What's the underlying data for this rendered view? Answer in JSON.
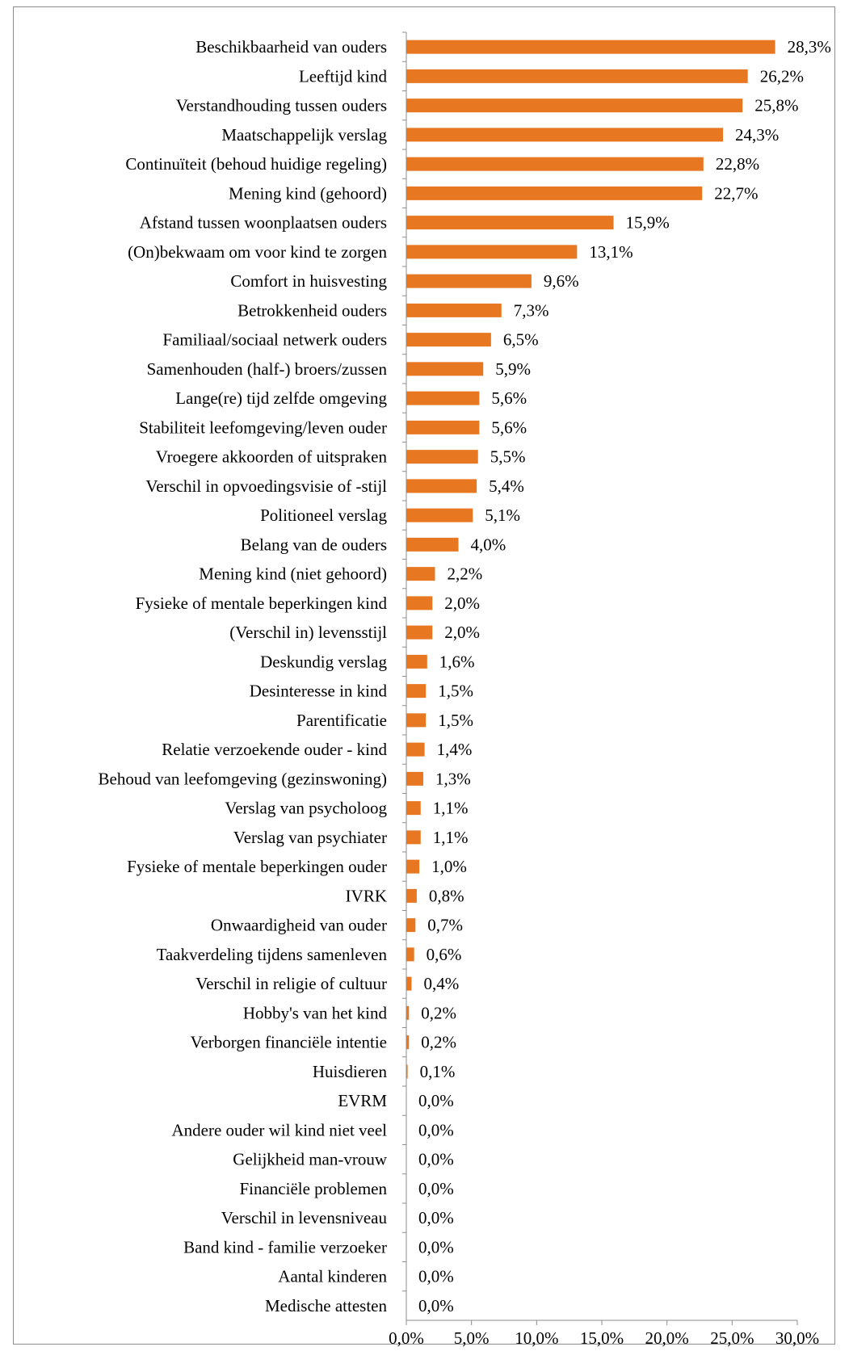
{
  "chart_data": {
    "type": "bar",
    "orientation": "horizontal",
    "title": "",
    "xlabel": "",
    "ylabel": "",
    "xlim": [
      0,
      30
    ],
    "x_ticks": [
      "0,0%",
      "5,0%",
      "10,0%",
      "15,0%",
      "20,0%",
      "25,0%",
      "30,0%"
    ],
    "grid": false,
    "legend": "none",
    "bar_color": "#E87722",
    "categories": [
      "Beschikbaarheid van ouders",
      "Leeftijd kind",
      "Verstandhouding tussen ouders",
      "Maatschappelijk verslag",
      "Continuïteit (behoud huidige regeling)",
      "Mening kind (gehoord)",
      "Afstand tussen woonplaatsen ouders",
      "(On)bekwaam om voor kind te zorgen",
      "Comfort in huisvesting",
      "Betrokkenheid ouders",
      "Familiaal/sociaal netwerk ouders",
      "Samenhouden (half-) broers/zussen",
      "Lange(re) tijd zelfde omgeving",
      "Stabiliteit leefomgeving/leven ouder",
      "Vroegere akkoorden of uitspraken",
      "Verschil in opvoedingsvisie of -stijl",
      "Politioneel verslag",
      "Belang van de ouders",
      "Mening kind (niet gehoord)",
      "Fysieke of mentale beperkingen kind",
      "(Verschil in) levensstijl",
      "Deskundig verslag",
      "Desinteresse in kind",
      "Parentificatie",
      "Relatie verzoekende ouder - kind",
      "Behoud van leefomgeving (gezinswoning)",
      "Verslag van psycholoog",
      "Verslag van psychiater",
      "Fysieke of mentale beperkingen ouder",
      "IVRK",
      "Onwaardigheid van ouder",
      "Taakverdeling tijdens samenleven",
      "Verschil in religie of cultuur",
      "Hobby's van het kind",
      "Verborgen financiële intentie",
      "Huisdieren",
      "EVRM",
      "Andere ouder wil kind niet veel",
      "Gelijkheid man-vrouw",
      "Financiële problemen",
      "Verschil in levensniveau",
      "Band kind - familie verzoeker",
      "Aantal kinderen",
      "Medische attesten"
    ],
    "values": [
      28.3,
      26.2,
      25.8,
      24.3,
      22.8,
      22.7,
      15.9,
      13.1,
      9.6,
      7.3,
      6.5,
      5.9,
      5.6,
      5.6,
      5.5,
      5.4,
      5.1,
      4.0,
      2.2,
      2.0,
      2.0,
      1.6,
      1.5,
      1.5,
      1.4,
      1.3,
      1.1,
      1.1,
      1.0,
      0.8,
      0.7,
      0.6,
      0.4,
      0.2,
      0.2,
      0.1,
      0.0,
      0.0,
      0.0,
      0.0,
      0.0,
      0.0,
      0.0,
      0.0
    ],
    "value_labels": [
      "28,3%",
      "26,2%",
      "25,8%",
      "24,3%",
      "22,8%",
      "22,7%",
      "15,9%",
      "13,1%",
      "9,6%",
      "7,3%",
      "6,5%",
      "5,9%",
      "5,6%",
      "5,6%",
      "5,5%",
      "5,4%",
      "5,1%",
      "4,0%",
      "2,2%",
      "2,0%",
      "2,0%",
      "1,6%",
      "1,5%",
      "1,5%",
      "1,4%",
      "1,3%",
      "1,1%",
      "1,1%",
      "1,0%",
      "0,8%",
      "0,7%",
      "0,6%",
      "0,4%",
      "0,2%",
      "0,2%",
      "0,1%",
      "0,0%",
      "0,0%",
      "0,0%",
      "0,0%",
      "0,0%",
      "0,0%",
      "0,0%",
      "0,0%"
    ]
  }
}
